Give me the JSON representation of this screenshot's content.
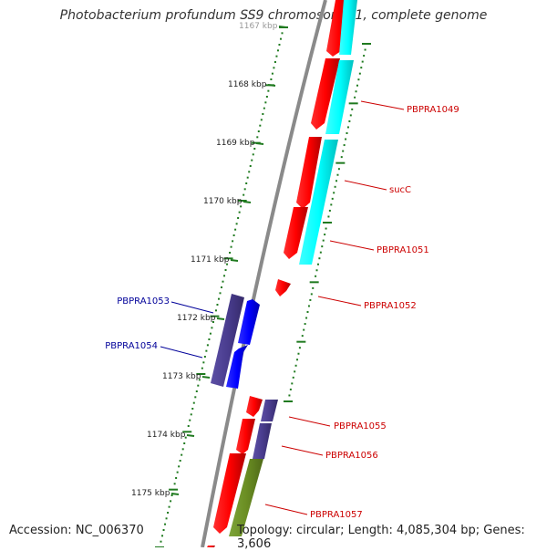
{
  "title": "Photobacterium profundum SS9 chromosome 1, complete genome",
  "accession": "Accession: NC_006370",
  "topology": "Topology: circular; Length: 4,085,304 bp; Genes: 3,606",
  "colors": {
    "backbone": "#8a8a8a",
    "ticks": "#1f7a1f",
    "gene_red": "#ff0000",
    "gene_cyan": "#00ffff",
    "gene_blue": "#0000ff",
    "gene_purple": "#4a3d8f",
    "gene_olive": "#6b8e23",
    "label_red": "#cc0000",
    "label_blue": "#000099"
  },
  "kbp_labels": [
    "1167 kbp",
    "1168 kbp",
    "1169 kbp",
    "1170 kbp",
    "1171 kbp",
    "1172 kbp",
    "1173 kbp",
    "1174 kbp",
    "1175 kbp"
  ],
  "gene_labels": [
    {
      "name": "PBPRA1049",
      "strand": "forward"
    },
    {
      "name": "sucC",
      "strand": "forward"
    },
    {
      "name": "PBPRA1051",
      "strand": "forward"
    },
    {
      "name": "PBPRA1052",
      "strand": "forward"
    },
    {
      "name": "PBPRA1053",
      "strand": "reverse"
    },
    {
      "name": "PBPRA1054",
      "strand": "reverse"
    },
    {
      "name": "PBPRA1055",
      "strand": "forward"
    },
    {
      "name": "PBPRA1056",
      "strand": "forward"
    },
    {
      "name": "PBPRA1057",
      "strand": "forward"
    }
  ]
}
